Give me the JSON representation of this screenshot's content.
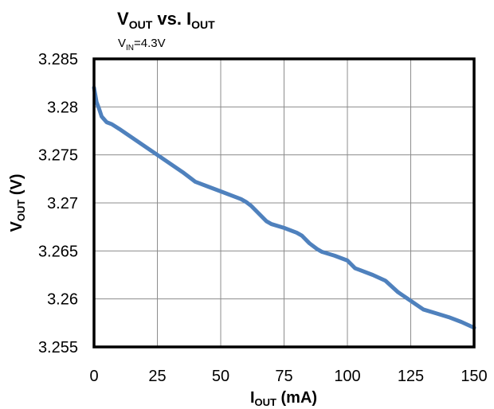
{
  "chart_data": {
    "type": "line",
    "title": {
      "main": "V",
      "main_sub": "OUT",
      "mid": " vs. I",
      "mid_sub": "OUT"
    },
    "subtitle": {
      "main": "V",
      "sub": "IN",
      "rest": "=4.3V"
    },
    "xlabel": {
      "main": "I",
      "sub": "OUT",
      "rest": " (mA)"
    },
    "ylabel": {
      "main": "V",
      "sub": "OUT",
      "rest": " (V)"
    },
    "xlim": [
      0,
      150
    ],
    "ylim": [
      3.255,
      3.285
    ],
    "x_ticks": [
      0,
      25,
      50,
      75,
      100,
      125,
      150
    ],
    "x_tick_labels": [
      "0",
      "25",
      "50",
      "75",
      "100",
      "125",
      "150"
    ],
    "y_ticks": [
      3.255,
      3.26,
      3.265,
      3.27,
      3.275,
      3.28,
      3.285
    ],
    "y_tick_labels": [
      "3.255",
      "3.26",
      "3.265",
      "3.27",
      "3.275",
      "3.28",
      "3.285"
    ],
    "grid": true,
    "series": [
      {
        "color": "#4f81bd",
        "x": [
          0,
          1,
          2,
          3,
          5,
          7,
          10,
          15,
          20,
          25,
          30,
          35,
          38,
          40,
          45,
          50,
          55,
          58,
          60,
          62,
          65,
          68,
          70,
          75,
          80,
          82,
          85,
          88,
          90,
          95,
          100,
          103,
          105,
          110,
          115,
          120,
          125,
          130,
          135,
          140,
          145,
          150
        ],
        "y": [
          3.282,
          3.2805,
          3.2798,
          3.279,
          3.2784,
          3.2782,
          3.2777,
          3.2768,
          3.2759,
          3.275,
          3.2741,
          3.2732,
          3.2726,
          3.2722,
          3.2717,
          3.2712,
          3.2707,
          3.2704,
          3.2701,
          3.2697,
          3.2689,
          3.2681,
          3.2678,
          3.2674,
          3.2669,
          3.2666,
          3.2658,
          3.2652,
          3.2649,
          3.2645,
          3.264,
          3.2632,
          3.263,
          3.2625,
          3.2619,
          3.2607,
          3.2598,
          3.2589,
          3.2585,
          3.2581,
          3.2576,
          3.257
        ]
      }
    ]
  }
}
